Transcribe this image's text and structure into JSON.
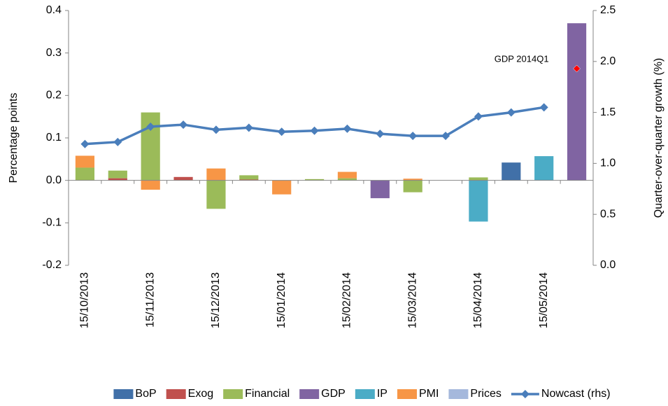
{
  "chart_data": {
    "type": "bar",
    "categories": [
      "15/10/2013",
      null,
      "15/11/2013",
      null,
      "15/12/2013",
      null,
      "15/01/2014",
      null,
      "15/02/2014",
      null,
      "15/03/2014",
      null,
      "15/04/2014",
      null,
      "15/05/2014",
      null
    ],
    "ylabel": "Percentage points",
    "y2label": "Quarter-over-quarter growth (%)",
    "ylim": [
      -0.2,
      0.4
    ],
    "yticks": [
      -0.2,
      -0.1,
      {
        "value": 0,
        "label": "0.0"
      },
      0.1,
      0.2,
      0.3,
      0.4
    ],
    "y2lim": [
      0,
      2.5
    ],
    "y2ticks": [
      {
        "value": 0,
        "label": "0.0"
      },
      0.5,
      {
        "value": 1,
        "label": "1.0"
      },
      1.5,
      {
        "value": 2,
        "label": "2.0"
      },
      2.5
    ],
    "stacked": true,
    "series": [
      {
        "name": "BoP",
        "color": "#4170a8",
        "values": [
          null,
          null,
          null,
          null,
          null,
          null,
          null,
          null,
          null,
          null,
          null,
          null,
          null,
          0.042,
          null,
          null
        ]
      },
      {
        "name": "Exog",
        "color": "#c0504d",
        "values": [
          null,
          0.005,
          null,
          0.008,
          null,
          0.002,
          null,
          null,
          null,
          null,
          null,
          null,
          null,
          null,
          null,
          null
        ]
      },
      {
        "name": "Financial",
        "color": "#9bbb59",
        "values": [
          0.03,
          0.018,
          0.16,
          null,
          -0.067,
          0.01,
          null,
          0.003,
          0.005,
          null,
          -0.028,
          null,
          0.007,
          null,
          null,
          null
        ]
      },
      {
        "name": "GDP",
        "color": "#8064a2",
        "values": [
          null,
          null,
          null,
          null,
          null,
          null,
          null,
          null,
          null,
          -0.042,
          null,
          null,
          null,
          null,
          null,
          0.37
        ]
      },
      {
        "name": "IP",
        "color": "#4bacc6",
        "values": [
          null,
          null,
          null,
          null,
          null,
          null,
          null,
          null,
          null,
          null,
          null,
          null,
          -0.097,
          null,
          0.057,
          null
        ]
      },
      {
        "name": "PMI",
        "color": "#f79646",
        "values": [
          0.028,
          null,
          -0.022,
          null,
          0.028,
          null,
          -0.033,
          null,
          0.015,
          null,
          0.004,
          null,
          null,
          null,
          null,
          null
        ]
      },
      {
        "name": "Prices",
        "color": "#a5b8dc",
        "values": [
          null,
          null,
          null,
          null,
          null,
          null,
          null,
          null,
          null,
          null,
          null,
          null,
          null,
          null,
          null,
          null
        ]
      },
      {
        "name": "Nowcast (rhs)",
        "color": "#4a7ebb",
        "type": "line",
        "axis": "y2",
        "values": [
          1.19,
          1.21,
          1.36,
          1.38,
          1.33,
          1.35,
          1.31,
          1.32,
          1.34,
          1.29,
          1.27,
          1.27,
          1.46,
          1.5,
          1.55,
          null
        ]
      }
    ],
    "annotations": [
      {
        "text": "GDP 2014Q1",
        "value": 1.93,
        "color": "#ff0000"
      }
    ],
    "legend": "bottom"
  }
}
